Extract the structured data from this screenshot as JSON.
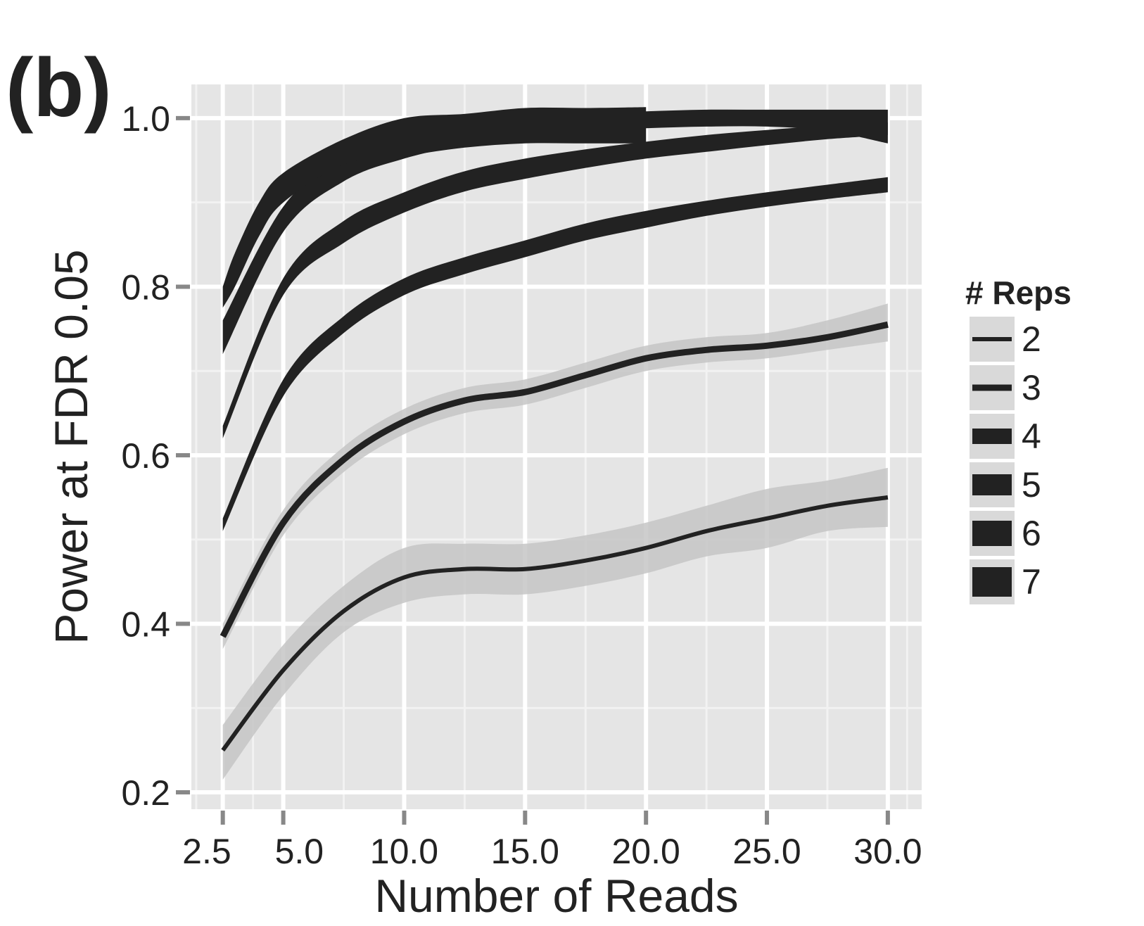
{
  "chart_data": {
    "type": "line",
    "panel_label": "(b)",
    "title": "",
    "xlabel": "Number of Reads",
    "ylabel": "Power at FDR 0.05",
    "xlim": [
      1.2,
      31.4
    ],
    "ylim": [
      0.18,
      1.04
    ],
    "x_ticks": [
      2.5,
      5.0,
      10.0,
      15.0,
      20.0,
      25.0,
      30.0
    ],
    "x_tick_labels": [
      "2.5",
      "5.0",
      "10.0",
      "15.0",
      "20.0",
      "25.0",
      "30.0"
    ],
    "y_ticks": [
      0.2,
      0.4,
      0.6,
      0.8,
      1.0
    ],
    "y_tick_labels": [
      "0.2",
      "0.4",
      "0.6",
      "0.8",
      "1.0"
    ],
    "grid": true,
    "legend": {
      "title": "# Reps",
      "position": "right"
    },
    "series": [
      {
        "name": "2",
        "line_width": 6,
        "x": [
          2.5,
          5.0,
          7.5,
          10.0,
          12.5,
          15.0,
          17.5,
          20.0,
          22.5,
          25.0,
          27.5,
          30.0
        ],
        "y": [
          0.25,
          0.345,
          0.415,
          0.455,
          0.465,
          0.465,
          0.475,
          0.49,
          0.51,
          0.525,
          0.54,
          0.55
        ],
        "ci_upper": [
          0.28,
          0.375,
          0.445,
          0.49,
          0.495,
          0.495,
          0.505,
          0.52,
          0.54,
          0.56,
          0.57,
          0.585
        ],
        "ci_lower": [
          0.215,
          0.315,
          0.39,
          0.425,
          0.435,
          0.435,
          0.445,
          0.46,
          0.48,
          0.49,
          0.51,
          0.515
        ]
      },
      {
        "name": "3",
        "line_width": 9,
        "x": [
          2.5,
          5.0,
          7.5,
          10.0,
          12.5,
          15.0,
          17.5,
          20.0,
          22.5,
          25.0,
          27.5,
          30.0
        ],
        "y": [
          0.385,
          0.52,
          0.595,
          0.64,
          0.665,
          0.675,
          0.695,
          0.715,
          0.725,
          0.73,
          0.74,
          0.755
        ],
        "ci_upper": [
          0.4,
          0.535,
          0.61,
          0.655,
          0.68,
          0.69,
          0.71,
          0.73,
          0.74,
          0.745,
          0.76,
          0.78
        ],
        "ci_lower": [
          0.37,
          0.505,
          0.58,
          0.625,
          0.65,
          0.66,
          0.68,
          0.7,
          0.71,
          0.715,
          0.725,
          0.735
        ]
      },
      {
        "name": "4",
        "line_width": 0,
        "x": [
          2.5,
          5.0,
          7.5,
          10.0,
          12.5,
          15.0,
          17.5,
          20.0,
          22.5,
          25.0,
          27.5,
          30.0
        ],
        "y": [
          0.52,
          0.68,
          0.755,
          0.8,
          0.825,
          0.845,
          0.865,
          0.88,
          0.893,
          0.903,
          0.912,
          0.92
        ],
        "ci_upper": [
          0.525,
          0.69,
          0.765,
          0.81,
          0.835,
          0.855,
          0.875,
          0.89,
          0.902,
          0.912,
          0.921,
          0.93
        ],
        "ci_lower": [
          0.51,
          0.67,
          0.745,
          0.79,
          0.815,
          0.835,
          0.855,
          0.87,
          0.884,
          0.895,
          0.904,
          0.912
        ]
      },
      {
        "name": "5",
        "line_width": 0,
        "x": [
          2.5,
          5.0,
          7.5,
          10.0,
          12.5,
          15.0,
          17.5,
          20.0,
          22.5,
          25.0,
          27.5,
          30.0
        ],
        "y": [
          0.63,
          0.8,
          0.865,
          0.9,
          0.925,
          0.94,
          0.952,
          0.962,
          0.97,
          0.977,
          0.983,
          0.988
        ],
        "ci_upper": [
          0.635,
          0.81,
          0.878,
          0.912,
          0.937,
          0.952,
          0.963,
          0.972,
          0.98,
          0.986,
          0.991,
          0.995
        ],
        "ci_lower": [
          0.62,
          0.79,
          0.852,
          0.888,
          0.913,
          0.928,
          0.941,
          0.952,
          0.96,
          0.968,
          0.975,
          0.98
        ]
      },
      {
        "name": "6",
        "line_width": 0,
        "x": [
          2.5,
          5.0,
          7.5,
          10.0,
          12.5,
          15.0,
          17.5,
          20.0,
          22.5,
          25.0,
          27.5,
          30.0
        ],
        "y": [
          0.75,
          0.88,
          0.94,
          0.965,
          0.98,
          0.99,
          0.995,
          0.998,
          1.0,
          1.0,
          1.0,
          0.99
        ],
        "ci_upper": [
          0.76,
          0.895,
          0.955,
          0.978,
          0.992,
          1.0,
          1.005,
          1.008,
          1.01,
          1.01,
          1.01,
          1.01
        ],
        "ci_lower": [
          0.72,
          0.865,
          0.925,
          0.952,
          0.968,
          0.978,
          0.985,
          0.988,
          0.99,
          0.99,
          0.985,
          0.97
        ]
      },
      {
        "name": "7",
        "line_width": 0,
        "x": [
          2.5,
          3.0,
          4.0,
          5.0,
          7.5,
          10.0,
          12.5,
          15.0,
          17.5,
          20.0
        ],
        "y": [
          0.785,
          0.82,
          0.88,
          0.92,
          0.96,
          0.975,
          0.985,
          0.99,
          0.99,
          0.99
        ],
        "ci_upper": [
          0.8,
          0.84,
          0.9,
          0.935,
          0.975,
          1.0,
          1.005,
          1.012,
          1.012,
          1.013
        ],
        "ci_lower": [
          0.775,
          0.8,
          0.86,
          0.9,
          0.945,
          0.955,
          0.965,
          0.97,
          0.97,
          0.97
        ]
      }
    ],
    "colors": {
      "panel_bg": "#e5e5e5",
      "grid_major": "#ffffff",
      "grid_minor": "#f2f2f2",
      "line": "#222222",
      "ribbon": "#c6c6c6",
      "legend_key_bg": "#d9d9d9",
      "tick": "#888888"
    }
  }
}
